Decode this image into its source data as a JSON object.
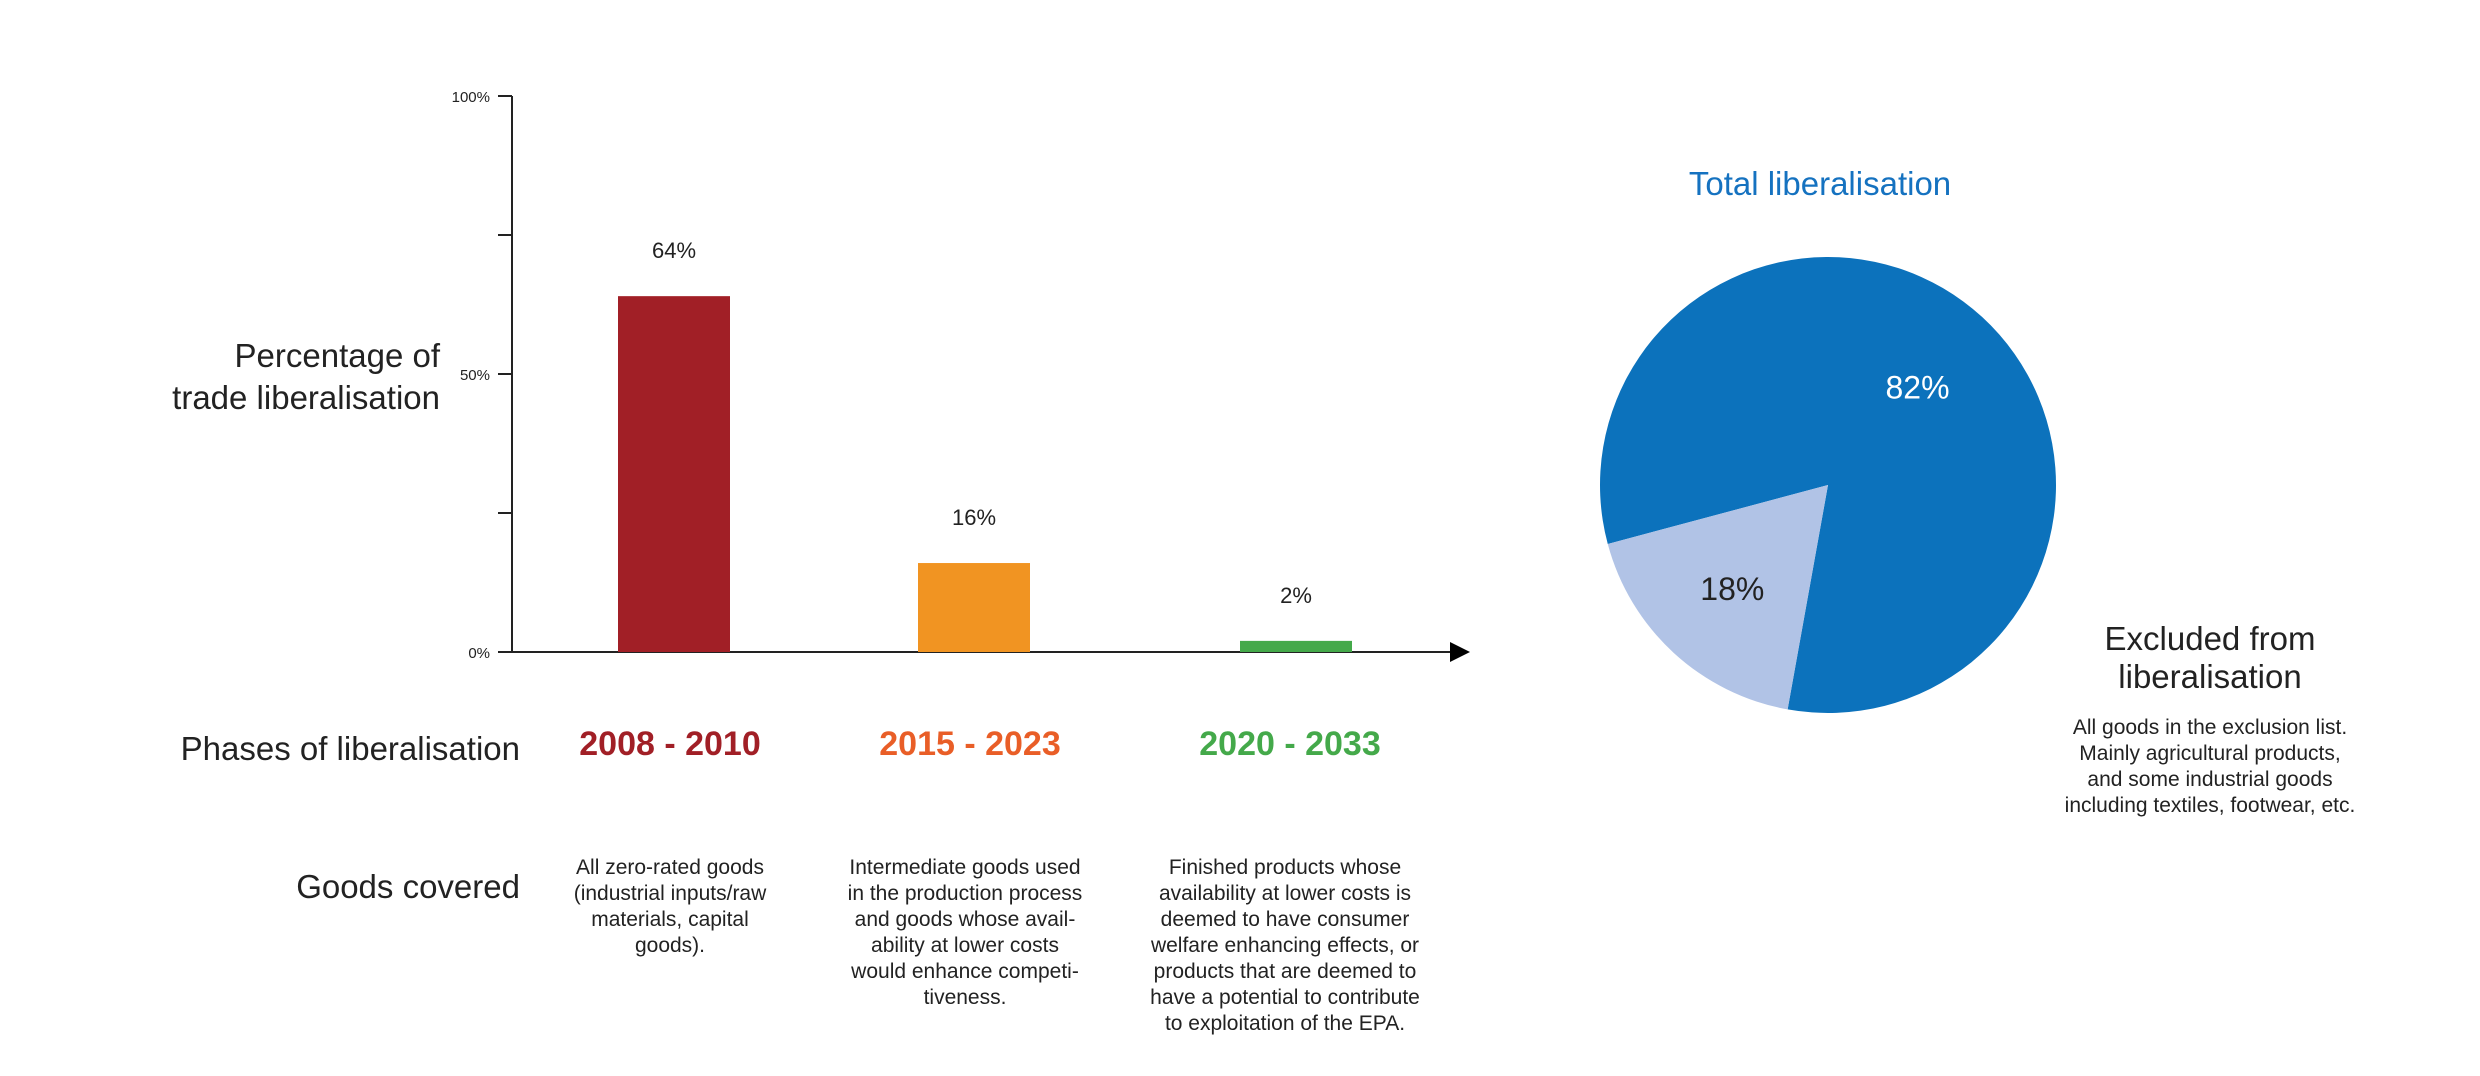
{
  "chart_data": [
    {
      "type": "bar",
      "ylabel": "Percentage of\ntrade liberalisation",
      "ylim": [
        0,
        100
      ],
      "yticks": [
        0,
        25,
        50,
        75,
        100
      ],
      "ytick_labels": [
        "0%",
        "",
        "50%",
        "",
        "100%"
      ],
      "categories": [
        "2008 - 2010",
        "2015 - 2023",
        "2020 - 2033"
      ],
      "values": [
        64,
        16,
        2
      ],
      "data_labels": [
        "64%",
        "16%",
        "2%"
      ],
      "colors": [
        "#a11f26",
        "#f19422",
        "#44a94a"
      ],
      "label_colors": [
        "#a11f26",
        "#e95e27",
        "#44a94a"
      ]
    },
    {
      "type": "pie",
      "title": "Total liberalisation",
      "slices": [
        {
          "label": "82%",
          "value": 82,
          "color": "#0c72bc"
        },
        {
          "label": "18%",
          "value": 18,
          "color": "#b1c3e6"
        }
      ]
    }
  ],
  "rows": {
    "phases_label": "Phases of liberalisation",
    "goods_label": "Goods covered"
  },
  "goods": [
    "All zero-rated goods\n(industrial inputs/raw\nmaterials, capital\ngoods).",
    "Intermediate goods used\nin the production process\nand goods whose avail-\nability at lower costs\nwould enhance competi-\ntiveness.",
    "Finished products whose\navailability at lower costs is\ndeemed to have consumer\nwelfare enhancing effects, or\nproducts that are deemed to\nhave a potential to contribute\nto exploitation of the EPA."
  ],
  "excluded": {
    "title": "Excluded from\nliberalisation",
    "description": "All goods in the exclusion list.\nMainly agricultural products,\nand some industrial goods\nincluding textiles, footwear, etc."
  }
}
